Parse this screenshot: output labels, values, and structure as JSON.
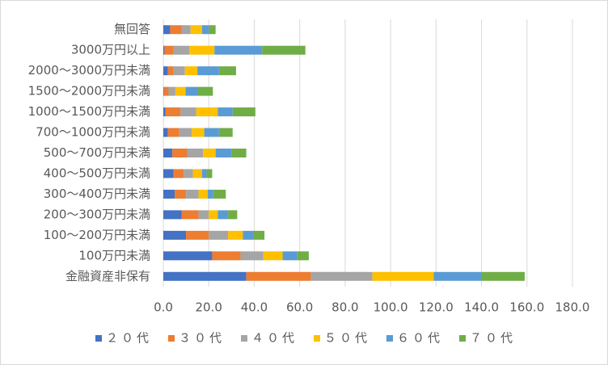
{
  "chart_data": {
    "type": "stacked-barh",
    "categories": [
      "無回答",
      "3000万円以上",
      "2000～3000万円未満",
      "1500～2000万円未満",
      "1000～1500万円未満",
      "700～1000万円未満",
      "500～700万円未満",
      "400～500万円未満",
      "300～400万円未満",
      "200～300万円未満",
      "100～200万円未満",
      "100万円未満",
      "金融資産非保有"
    ],
    "series": [
      {
        "name": "２０代",
        "color": "#4472c4",
        "values": [
          3,
          0.5,
          2,
          0.3,
          1,
          2,
          4,
          4.5,
          5,
          8,
          10,
          21.5,
          36.5
        ]
      },
      {
        "name": "３０代",
        "color": "#ed7d31",
        "values": [
          5,
          4,
          2.5,
          2,
          6.5,
          5,
          6.5,
          4.5,
          5,
          7.5,
          10,
          12.5,
          28.5
        ]
      },
      {
        "name": "４０代",
        "color": "#a5a5a5",
        "values": [
          4,
          7,
          5,
          3,
          7,
          5.5,
          7,
          4,
          5.5,
          4.5,
          8.5,
          10,
          27
        ]
      },
      {
        "name": "５０代",
        "color": "#ffc000",
        "values": [
          5,
          11,
          5.5,
          4.5,
          9.5,
          5.5,
          5.5,
          4,
          4,
          4,
          6.5,
          8.5,
          27
        ]
      },
      {
        "name": "６０代",
        "color": "#5b9bd5",
        "values": [
          3,
          21,
          9.5,
          5.5,
          6.5,
          6.5,
          7,
          2,
          2.5,
          4.5,
          4.5,
          6.5,
          21
        ]
      },
      {
        "name": "７０代",
        "color": "#70ad47",
        "values": [
          3,
          19,
          7.5,
          6.5,
          10,
          6,
          6.5,
          2.5,
          5.5,
          4,
          5,
          5,
          19
        ]
      }
    ],
    "xlim": [
      0,
      180
    ],
    "xticks": [
      {
        "value": 0,
        "label": "0.0"
      },
      {
        "value": 20,
        "label": "20.0"
      },
      {
        "value": 40,
        "label": "40.0"
      },
      {
        "value": 60,
        "label": "60.0"
      },
      {
        "value": 80,
        "label": "80.0"
      },
      {
        "value": 100,
        "label": "100.0"
      },
      {
        "value": 120,
        "label": "120.0"
      },
      {
        "value": 140,
        "label": "140.0"
      },
      {
        "value": 160,
        "label": "160.0"
      },
      {
        "value": 180,
        "label": "180.0"
      }
    ],
    "grid": true
  }
}
